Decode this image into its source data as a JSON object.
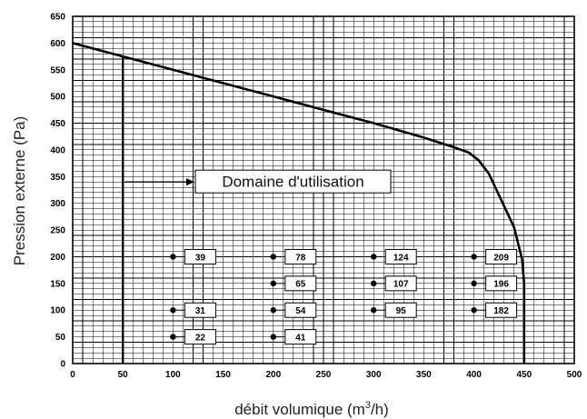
{
  "chart_data": {
    "type": "line",
    "title": "",
    "xlabel": "débit volumique (m",
    "xlabel_sup": "3",
    "xlabel_end": "/h)",
    "ylabel": "Pression externe (Pa)",
    "xlim": [
      0,
      500
    ],
    "ylim": [
      0,
      650
    ],
    "x_ticks": [
      0,
      50,
      100,
      150,
      200,
      250,
      300,
      350,
      400,
      450,
      500
    ],
    "y_ticks": [
      0,
      50,
      100,
      150,
      200,
      250,
      300,
      350,
      400,
      450,
      500,
      550,
      600,
      650
    ],
    "grid": true,
    "series": [
      {
        "x": [
          0,
          50,
          100,
          150,
          200,
          250,
          300,
          350,
          380,
          395,
          405,
          415,
          425,
          430,
          440,
          448,
          450,
          450,
          450
        ],
        "y": [
          600,
          575,
          550,
          525,
          500,
          475,
          450,
          423,
          405,
          395,
          380,
          355,
          315,
          295,
          255,
          195,
          150,
          50,
          0
        ]
      }
    ],
    "vertical_line": {
      "x": 50,
      "y_from": 0,
      "y_to": 575
    },
    "annotation": {
      "text": "Domaine d'utilisation",
      "arrow_from_x": 50,
      "y": 340
    },
    "points": [
      {
        "x": 100,
        "y": 200,
        "label": "39"
      },
      {
        "x": 100,
        "y": 100,
        "label": "31"
      },
      {
        "x": 100,
        "y": 50,
        "label": "22"
      },
      {
        "x": 200,
        "y": 200,
        "label": "78"
      },
      {
        "x": 200,
        "y": 150,
        "label": "65"
      },
      {
        "x": 200,
        "y": 100,
        "label": "54"
      },
      {
        "x": 200,
        "y": 50,
        "label": "41"
      },
      {
        "x": 300,
        "y": 200,
        "label": "124"
      },
      {
        "x": 300,
        "y": 150,
        "label": "107"
      },
      {
        "x": 300,
        "y": 100,
        "label": "95"
      },
      {
        "x": 400,
        "y": 200,
        "label": "209"
      },
      {
        "x": 400,
        "y": 150,
        "label": "196"
      },
      {
        "x": 400,
        "y": 100,
        "label": "182"
      }
    ]
  }
}
